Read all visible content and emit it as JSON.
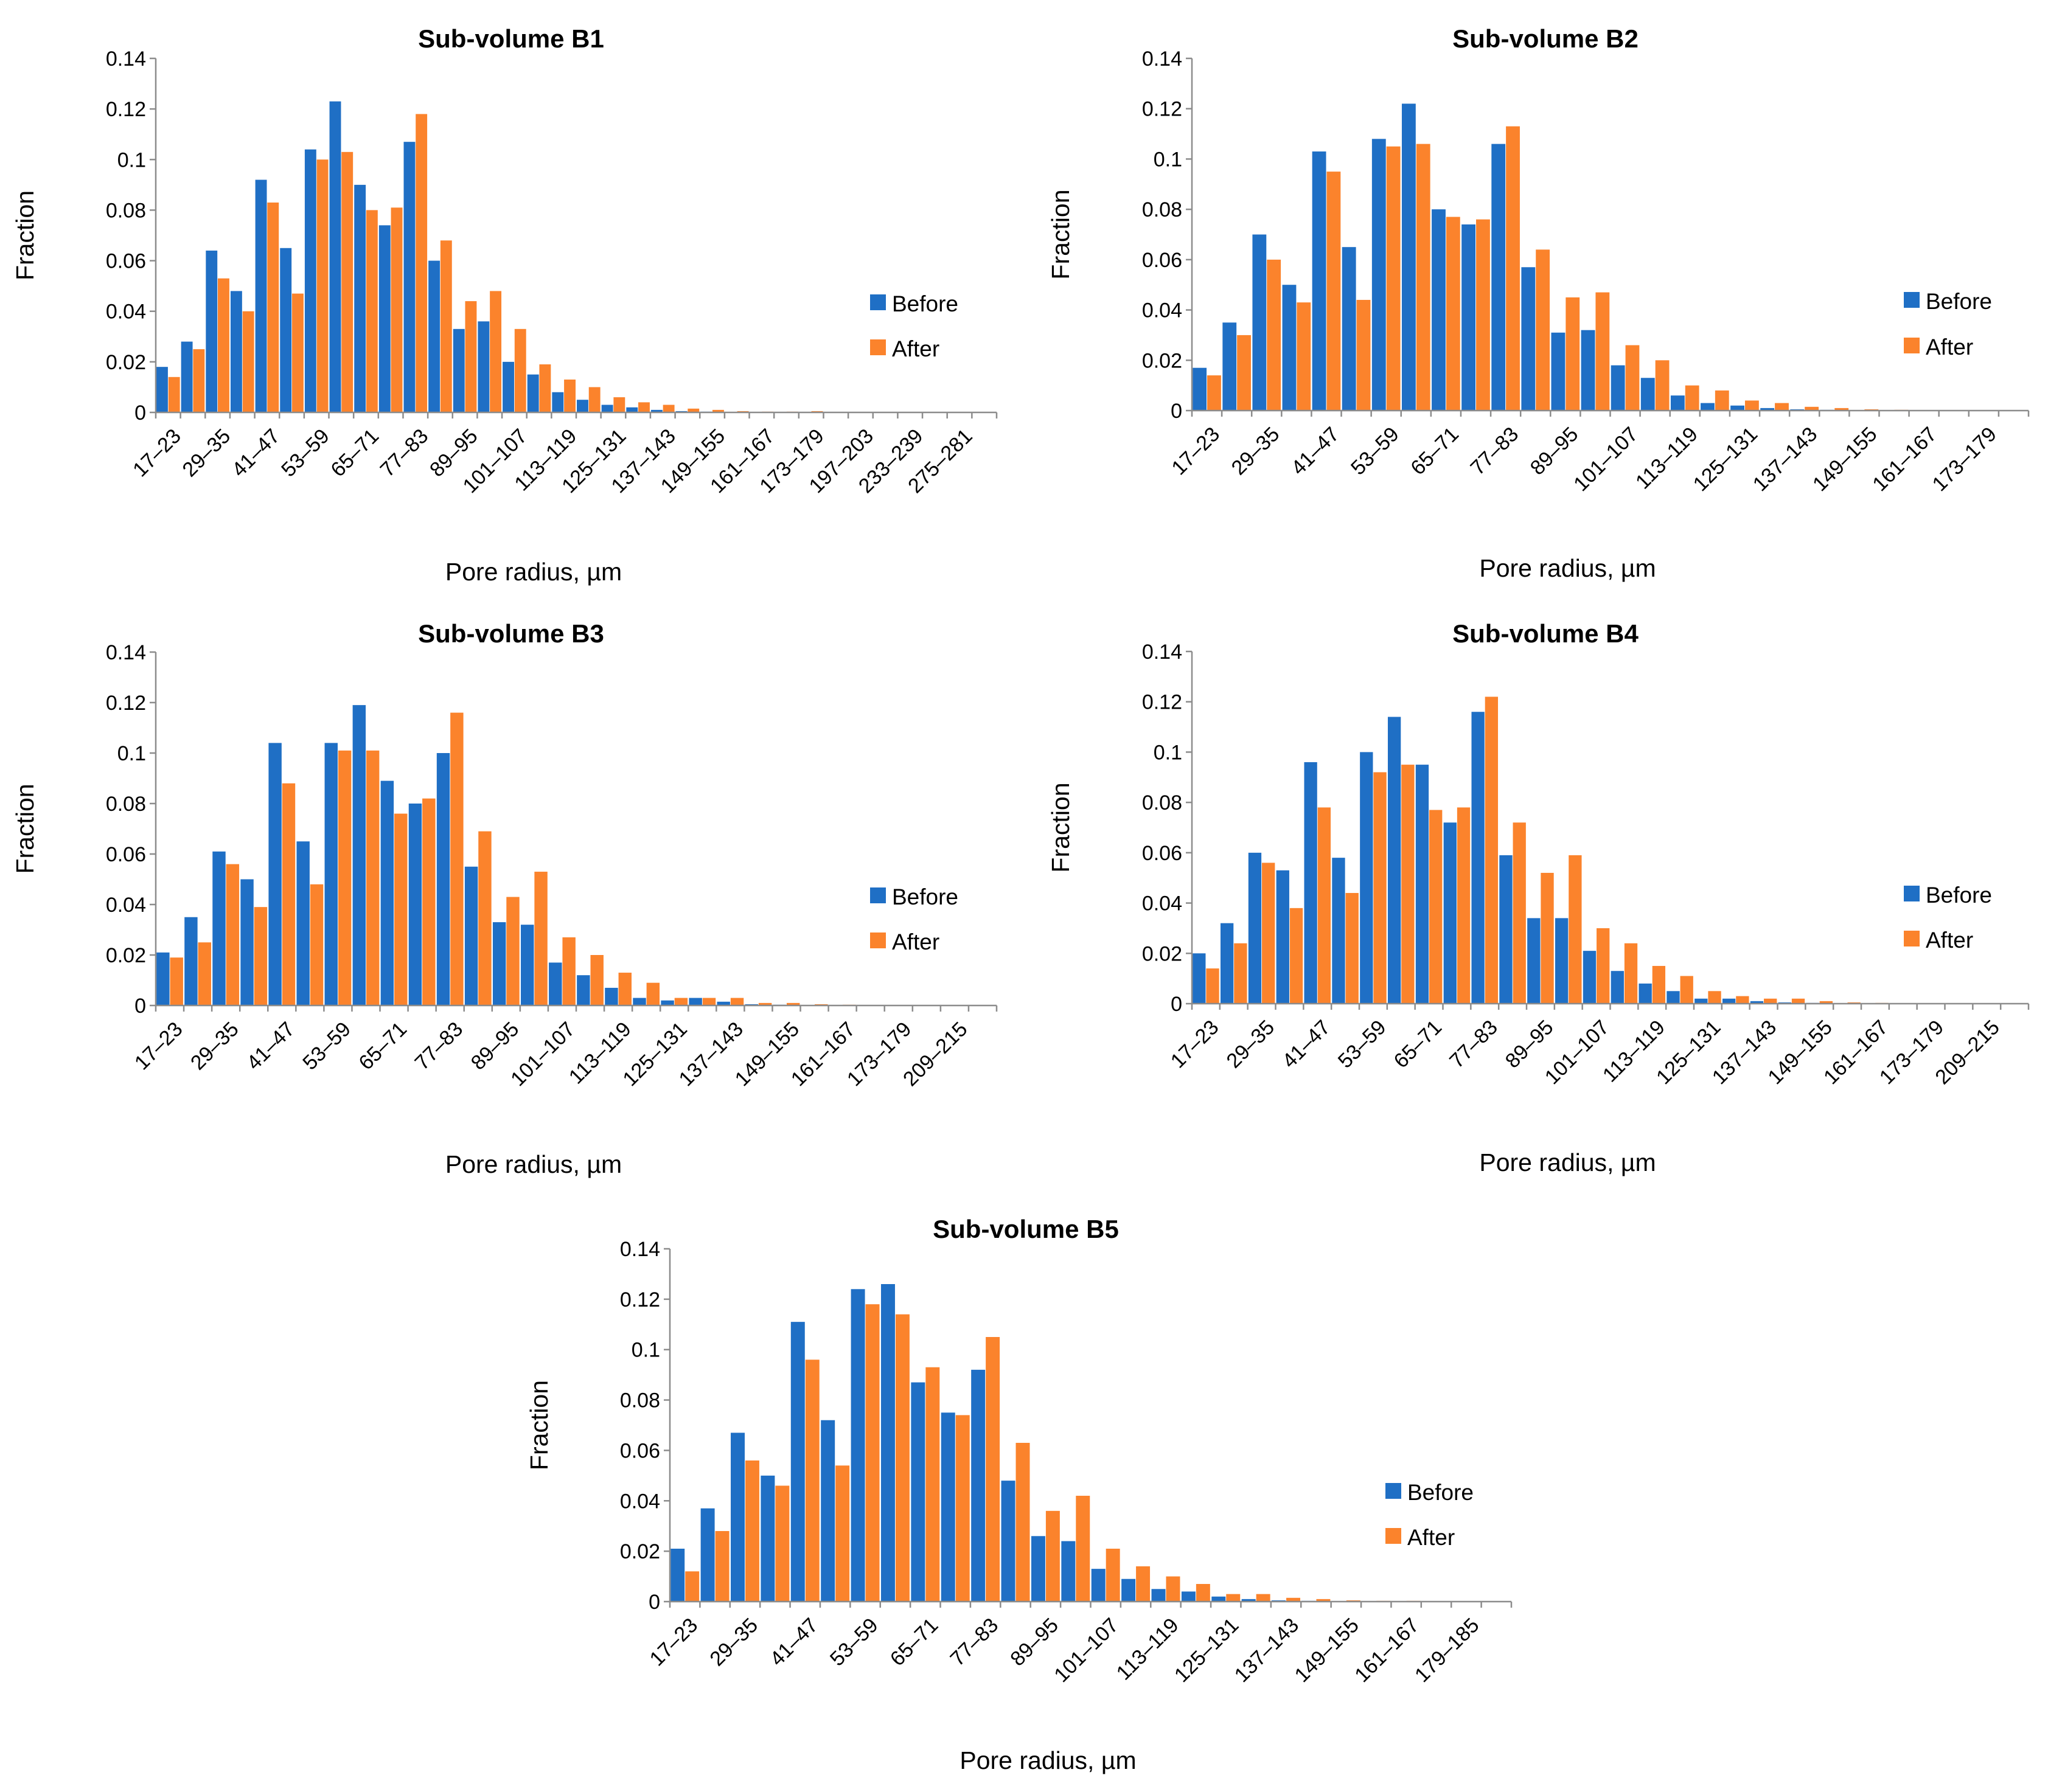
{
  "figure": {
    "legend_position": "right"
  },
  "colors": {
    "before": "#1f6fc5",
    "after": "#fb832c",
    "axis": "#8c8c8c"
  },
  "chart_data": [
    {
      "type": "bar",
      "title": "Sub-volume B1",
      "xlabel": "Pore radius, µm",
      "ylabel": "Fraction",
      "ylim": [
        0,
        0.14
      ],
      "yticks": [
        "0",
        "0.02",
        "0.04",
        "0.06",
        "0.08",
        "0.1",
        "0.12",
        "0.14"
      ],
      "tick_labels": [
        "17–23",
        "29–35",
        "41–47",
        "53–59",
        "65–71",
        "77–83",
        "89–95",
        "101–107",
        "113–119",
        "125–131",
        "137–143",
        "149–155",
        "161–167",
        "173–179",
        "197–203",
        "233–239",
        "275–281"
      ],
      "series": [
        {
          "name": "Before",
          "values": [
            0.018,
            0.028,
            0.064,
            0.048,
            0.092,
            0.065,
            0.104,
            0.123,
            0.09,
            0.074,
            0.107,
            0.06,
            0.033,
            0.036,
            0.02,
            0.015,
            0.008,
            0.005,
            0.003,
            0.002,
            0.001,
            0.0005,
            0.0003,
            0.0002,
            0.0002,
            0.0001,
            0.0001,
            0.0001,
            0.0001,
            0,
            0,
            0,
            0,
            0
          ]
        },
        {
          "name": "After",
          "values": [
            0.014,
            0.025,
            0.053,
            0.04,
            0.083,
            0.047,
            0.1,
            0.103,
            0.08,
            0.081,
            0.118,
            0.068,
            0.044,
            0.048,
            0.033,
            0.019,
            0.013,
            0.01,
            0.006,
            0.004,
            0.003,
            0.0015,
            0.001,
            0.0005,
            0.0003,
            0.0003,
            0.0005,
            0.0002,
            0.0001,
            0.0001,
            0.0001,
            0.0001,
            0.0001,
            0.0001
          ]
        }
      ]
    },
    {
      "type": "bar",
      "title": "Sub-volume B2",
      "xlabel": "Pore radius, µm",
      "ylabel": "Fraction",
      "ylim": [
        0,
        0.14
      ],
      "yticks": [
        "0",
        "0.02",
        "0.04",
        "0.06",
        "0.08",
        "0.1",
        "0.12",
        "0.14"
      ],
      "tick_labels": [
        "17–23",
        "29–35",
        "41–47",
        "53–59",
        "65–71",
        "77–83",
        "89–95",
        "101–107",
        "113–119",
        "125–131",
        "137–143",
        "149–155",
        "161–167",
        "173–179"
      ],
      "series": [
        {
          "name": "Before",
          "values": [
            0.017,
            0.035,
            0.07,
            0.05,
            0.103,
            0.065,
            0.108,
            0.122,
            0.08,
            0.074,
            0.106,
            0.057,
            0.031,
            0.032,
            0.018,
            0.013,
            0.006,
            0.003,
            0.002,
            0.001,
            0.0005,
            0.0003,
            0.0002,
            0.0002,
            0.0001,
            0.0001,
            0.0001,
            0.0001
          ]
        },
        {
          "name": "After",
          "values": [
            0.014,
            0.03,
            0.06,
            0.043,
            0.095,
            0.044,
            0.105,
            0.106,
            0.077,
            0.076,
            0.113,
            0.064,
            0.045,
            0.047,
            0.026,
            0.02,
            0.01,
            0.008,
            0.004,
            0.003,
            0.0015,
            0.001,
            0.0005,
            0.0003,
            0.0002,
            0.0002,
            0.0001,
            0.0001
          ]
        }
      ]
    },
    {
      "type": "bar",
      "title": "Sub-volume B3",
      "xlabel": "Pore radius, µm",
      "ylabel": "Fraction",
      "ylim": [
        0,
        0.14
      ],
      "yticks": [
        "0",
        "0.02",
        "0.04",
        "0.06",
        "0.08",
        "0.1",
        "0.12",
        "0.14"
      ],
      "tick_labels": [
        "17–23",
        "29–35",
        "41–47",
        "53–59",
        "65–71",
        "77–83",
        "89–95",
        "101–107",
        "113–119",
        "125–131",
        "137–143",
        "149–155",
        "161–167",
        "173–179",
        "209–215"
      ],
      "series": [
        {
          "name": "Before",
          "values": [
            0.021,
            0.035,
            0.061,
            0.05,
            0.104,
            0.065,
            0.104,
            0.119,
            0.089,
            0.08,
            0.1,
            0.055,
            0.033,
            0.032,
            0.017,
            0.012,
            0.007,
            0.003,
            0.002,
            0.003,
            0.0015,
            0.0005,
            0.0003,
            0.0002,
            0.0002,
            0.0001,
            0.0001,
            0.0001,
            0.0001,
            0.0001
          ]
        },
        {
          "name": "After",
          "values": [
            0.019,
            0.025,
            0.056,
            0.039,
            0.088,
            0.048,
            0.101,
            0.101,
            0.076,
            0.082,
            0.116,
            0.069,
            0.043,
            0.053,
            0.027,
            0.02,
            0.013,
            0.009,
            0.003,
            0.003,
            0.003,
            0.001,
            0.001,
            0.0005,
            0.0003,
            0.0002,
            0.0002,
            0.0001,
            0.0001,
            0.0001
          ]
        }
      ]
    },
    {
      "type": "bar",
      "title": "Sub-volume B4",
      "xlabel": "Pore radius, µm",
      "ylabel": "Fraction",
      "ylim": [
        0,
        0.14
      ],
      "yticks": [
        "0",
        "0.02",
        "0.04",
        "0.06",
        "0.08",
        "0.1",
        "0.12",
        "0.14"
      ],
      "tick_labels": [
        "17–23",
        "29–35",
        "41–47",
        "53–59",
        "65–71",
        "77–83",
        "89–95",
        "101–107",
        "113–119",
        "125–131",
        "137–143",
        "149–155",
        "161–167",
        "173–179",
        "209–215"
      ],
      "series": [
        {
          "name": "Before",
          "values": [
            0.02,
            0.032,
            0.06,
            0.053,
            0.096,
            0.058,
            0.1,
            0.114,
            0.095,
            0.072,
            0.116,
            0.059,
            0.034,
            0.034,
            0.021,
            0.013,
            0.008,
            0.005,
            0.002,
            0.002,
            0.001,
            0.0005,
            0.0003,
            0.0002,
            0.0002,
            0.0001,
            0.0001,
            0.0001,
            0.0001,
            0.0001
          ]
        },
        {
          "name": "After",
          "values": [
            0.014,
            0.024,
            0.056,
            0.038,
            0.078,
            0.044,
            0.092,
            0.095,
            0.077,
            0.078,
            0.122,
            0.072,
            0.052,
            0.059,
            0.03,
            0.024,
            0.015,
            0.011,
            0.005,
            0.003,
            0.002,
            0.002,
            0.001,
            0.0005,
            0.0003,
            0.0002,
            0.0002,
            0.0001,
            0.0001,
            0.0001
          ]
        }
      ]
    },
    {
      "type": "bar",
      "title": "Sub-volume B5",
      "xlabel": "Pore radius, µm",
      "ylabel": "Fraction",
      "ylim": [
        0,
        0.14
      ],
      "yticks": [
        "0",
        "0.02",
        "0.04",
        "0.06",
        "0.08",
        "0.1",
        "0.12",
        "0.14"
      ],
      "tick_labels": [
        "17–23",
        "29–35",
        "41–47",
        "53–59",
        "65–71",
        "77–83",
        "89–95",
        "101–107",
        "113–119",
        "125–131",
        "137–143",
        "149–155",
        "161–167",
        "179–185"
      ],
      "series": [
        {
          "name": "Before",
          "values": [
            0.021,
            0.037,
            0.067,
            0.05,
            0.111,
            0.072,
            0.124,
            0.126,
            0.087,
            0.075,
            0.092,
            0.048,
            0.026,
            0.024,
            0.013,
            0.009,
            0.005,
            0.004,
            0.002,
            0.001,
            0.0005,
            0.0003,
            0.0002,
            0.0002,
            0.0001,
            0.0001,
            0.0001,
            0.0001
          ]
        },
        {
          "name": "After",
          "values": [
            0.012,
            0.028,
            0.056,
            0.046,
            0.096,
            0.054,
            0.118,
            0.114,
            0.093,
            0.074,
            0.105,
            0.063,
            0.036,
            0.042,
            0.021,
            0.014,
            0.01,
            0.007,
            0.003,
            0.003,
            0.0015,
            0.001,
            0.0005,
            0.0003,
            0.0003,
            0.0002,
            0.0001,
            0.0001
          ]
        }
      ]
    }
  ]
}
